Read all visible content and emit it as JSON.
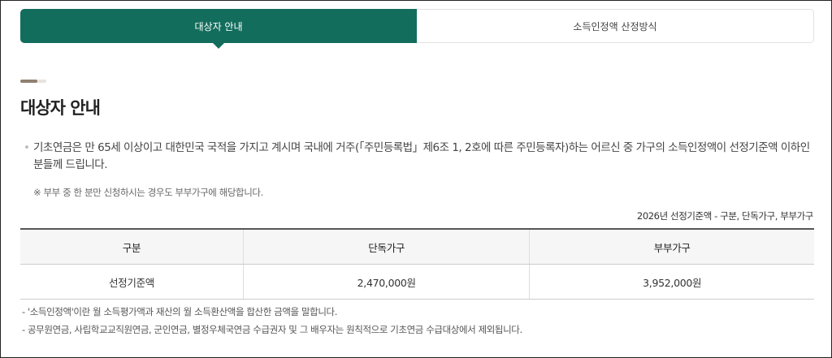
{
  "tabs": [
    {
      "label": "대상자 안내",
      "active": true
    },
    {
      "label": "소득인정액 산정방식",
      "active": false
    }
  ],
  "accent_color": "#136d5c",
  "section": {
    "title": "대상자 안내"
  },
  "bullet": "기초연금은 만 65세 이상이고 대한민국 국적을 가지고 계시며 국내에 거주(「주민등록법」제6조 1, 2호에 따른 주민등록자)하는 어르신 중 가구의 소득인정액이 선정기준액 이하인 분들께 드립니다.",
  "note": "※ 부부 중 한 분만 신청하시는 경우도 부부가구에 해당합니다.",
  "table": {
    "caption": "2026년 선정기준액 - 구분, 단독가구, 부부가구",
    "headers": [
      "구분",
      "단독가구",
      "부부가구"
    ],
    "rows": [
      [
        "선정기준액",
        "2,470,000원",
        "3,952,000원"
      ]
    ]
  },
  "footnotes": [
    "-  '소득인정액'이란 월 소득평가액과 재산의 월 소득환산액을 합산한 금액을 말합니다.",
    "-  공무원연금, 사립학교교직원연금, 군인연금, 별정우체국연금 수급권자 및 그 배우자는 원칙적으로 기초연금 수급대상에서 제외됩니다."
  ]
}
